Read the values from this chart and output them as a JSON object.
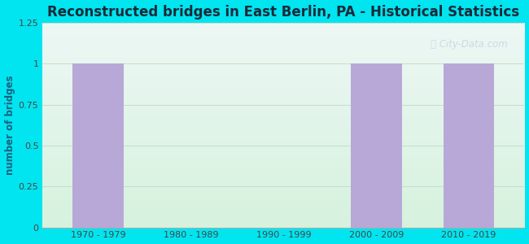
{
  "title": "Reconstructed bridges in East Berlin, PA - Historical Statistics",
  "categories": [
    "1970 - 1979",
    "1980 - 1989",
    "1990 - 1999",
    "2000 - 2009",
    "2010 - 2019"
  ],
  "values": [
    1,
    0,
    0,
    1,
    1
  ],
  "bar_color": "#b8a8d8",
  "bar_edgecolor": "#b8a8d8",
  "ylabel": "number of bridges",
  "ylim": [
    0,
    1.25
  ],
  "yticks": [
    0,
    0.25,
    0.5,
    0.75,
    1,
    1.25
  ],
  "ytick_labels": [
    "0",
    "0.25",
    "0.5",
    "0.75",
    "1",
    "1.25"
  ],
  "bg_outer": "#00e5f0",
  "bg_inner_top": "#e8f4f0",
  "bg_inner_bottom": "#d8f0e0",
  "title_fontsize": 12,
  "axis_label_fontsize": 8.5,
  "tick_fontsize": 8,
  "watermark_text": "City-Data.com",
  "watermark_color": "#b8c8d4",
  "watermark_alpha": 0.6,
  "bar_width": 0.55,
  "grid_color": "#c8dcc8",
  "title_color": "#1a2a3a"
}
